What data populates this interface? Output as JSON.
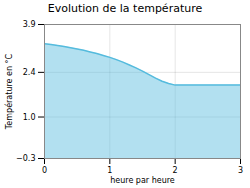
{
  "chart_data": {
    "type": "area",
    "title": "Evolution de la température",
    "x_label": "heure par heure",
    "y_label": "Température en °C",
    "x": [
      0,
      0.1,
      0.2,
      0.3,
      0.4,
      0.5,
      0.6,
      0.7,
      0.8,
      0.9,
      1.0,
      1.1,
      1.2,
      1.3,
      1.4,
      1.5,
      1.6,
      1.7,
      1.8,
      1.9,
      2.0,
      2.1,
      2.2,
      2.3,
      2.4,
      2.5,
      2.6,
      2.7,
      2.8,
      2.9,
      3.0
    ],
    "values": [
      3.3,
      3.27,
      3.24,
      3.21,
      3.17,
      3.13,
      3.09,
      3.04,
      2.99,
      2.93,
      2.87,
      2.8,
      2.72,
      2.63,
      2.54,
      2.44,
      2.33,
      2.22,
      2.12,
      2.05,
      2.0,
      2.0,
      2.0,
      2.0,
      2.0,
      2.0,
      2.0,
      2.0,
      2.0,
      2.0,
      2.0
    ],
    "color": "#55bbdd",
    "xlim": [
      0,
      3
    ],
    "xticks": [
      0,
      1,
      2,
      3
    ],
    "ylim": [
      -0.3,
      3.9
    ],
    "yticks": [
      {
        "value": -0.3,
        "label": "−0.3"
      },
      {
        "value": 1.0,
        "label": "1.0"
      },
      2.4,
      3.9
    ],
    "grid": true
  }
}
